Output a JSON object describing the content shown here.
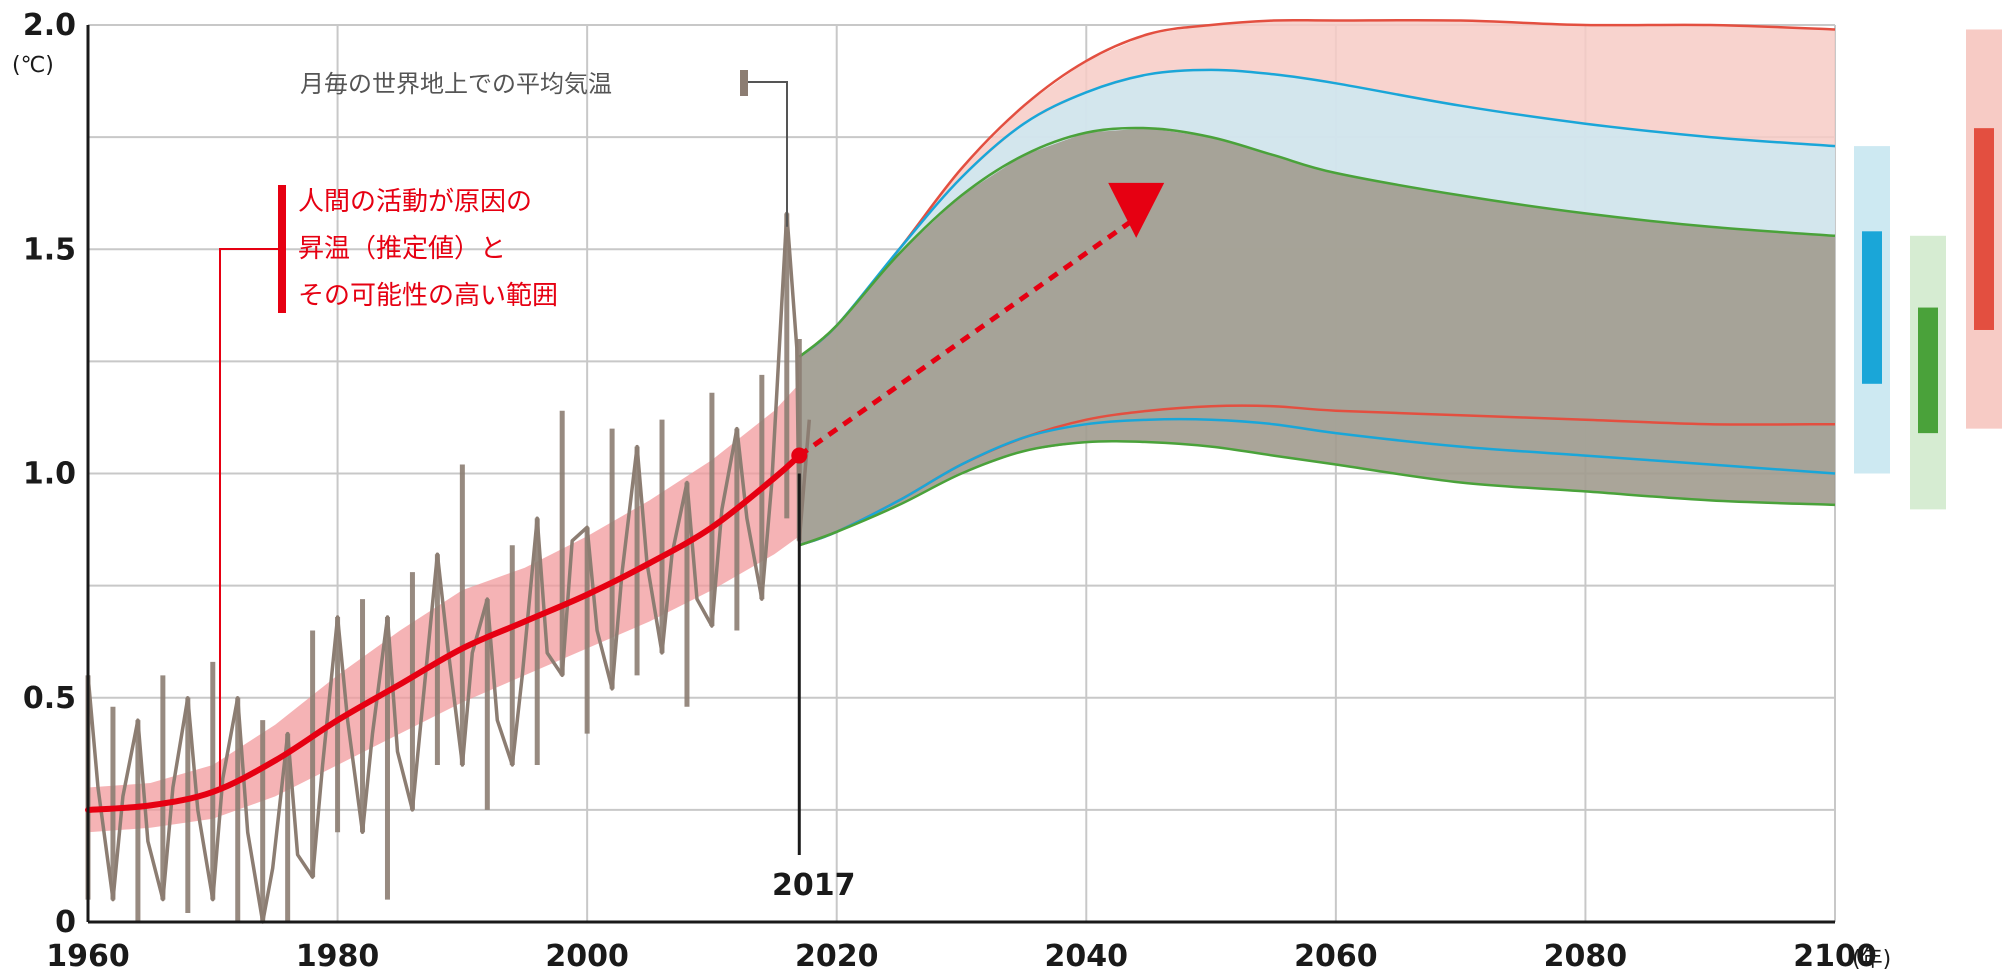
{
  "chart_data": {
    "type": "line",
    "title": "",
    "y_unit": "(℃)",
    "x_unit": "(年)",
    "xlim": [
      1960,
      2100
    ],
    "ylim": [
      0,
      2.0
    ],
    "x_ticks": [
      "1960",
      "1980",
      "2000",
      "2020",
      "2040",
      "2060",
      "2080",
      "2100"
    ],
    "y_ticks": [
      "0",
      "0.5",
      "1.0",
      "1.5",
      "2.0"
    ],
    "grid": true,
    "annotations": {
      "observed_label": "月毎の世界地上での平均気温",
      "human_label_lines": [
        "人間の活動が原因の",
        "昇温（推定値）と",
        "その可能性の高い範囲"
      ],
      "year_marker": "2017"
    },
    "human_warming": {
      "name": "人間の活動が原因の昇温（推定値）",
      "color": "#e60012",
      "x": [
        1960,
        1965,
        1970,
        1975,
        1980,
        1985,
        1990,
        1995,
        2000,
        2005,
        2010,
        2015,
        2017
      ],
      "y": [
        0.25,
        0.26,
        0.29,
        0.36,
        0.45,
        0.53,
        0.61,
        0.67,
        0.73,
        0.8,
        0.88,
        0.99,
        1.04
      ],
      "band_low": [
        0.2,
        0.21,
        0.23,
        0.28,
        0.35,
        0.42,
        0.49,
        0.55,
        0.61,
        0.67,
        0.74,
        0.82,
        0.86
      ],
      "band_high": [
        0.3,
        0.31,
        0.35,
        0.44,
        0.55,
        0.65,
        0.74,
        0.79,
        0.86,
        0.94,
        1.03,
        1.14,
        1.2
      ]
    },
    "observed_monthly": {
      "name": "月毎の世界地上での平均気温",
      "color": "#8c7d72",
      "x": [
        1960,
        1962,
        1964,
        1966,
        1968,
        1970,
        1972,
        1974,
        1976,
        1978,
        1980,
        1982,
        1984,
        1986,
        1988,
        1990,
        1992,
        1994,
        1996,
        1998,
        2000,
        2002,
        2004,
        2006,
        2008,
        2010,
        2012,
        2014,
        2016,
        2017
      ],
      "y": [
        0.3,
        0.28,
        0.18,
        0.3,
        0.25,
        0.32,
        0.2,
        0.12,
        0.15,
        0.35,
        0.45,
        0.42,
        0.38,
        0.48,
        0.62,
        0.6,
        0.45,
        0.55,
        0.6,
        0.85,
        0.65,
        0.78,
        0.8,
        0.82,
        0.72,
        0.92,
        0.9,
        0.98,
        1.28,
        1.12
      ],
      "max": [
        0.55,
        0.48,
        0.45,
        0.55,
        0.5,
        0.58,
        0.5,
        0.45,
        0.42,
        0.65,
        0.68,
        0.72,
        0.68,
        0.78,
        0.82,
        1.02,
        0.72,
        0.84,
        0.9,
        1.14,
        0.88,
        1.1,
        1.06,
        1.12,
        0.98,
        1.18,
        1.1,
        1.22,
        1.58,
        1.3
      ],
      "min": [
        0.05,
        0.05,
        0.0,
        0.05,
        0.02,
        0.05,
        0.0,
        0.0,
        0.0,
        0.1,
        0.2,
        0.2,
        0.05,
        0.25,
        0.35,
        0.35,
        0.25,
        0.35,
        0.35,
        0.55,
        0.42,
        0.52,
        0.55,
        0.6,
        0.48,
        0.66,
        0.65,
        0.72,
        0.9,
        0.85
      ]
    },
    "projection": {
      "start_year": 2017,
      "arrow_end": [
        2044,
        1.57
      ],
      "x": [
        2017,
        2020,
        2025,
        2030,
        2035,
        2040,
        2045,
        2050,
        2055,
        2060,
        2070,
        2080,
        2090,
        2100
      ],
      "scenarios": [
        {
          "name": "",
          "color": "#e34f40",
          "fill": "#f7cbc5",
          "upper": [
            1.26,
            1.33,
            1.5,
            1.68,
            1.82,
            1.92,
            1.98,
            2.0,
            2.01,
            2.01,
            2.01,
            2.0,
            2.0,
            1.99
          ],
          "lower": [
            0.84,
            0.87,
            0.94,
            1.02,
            1.08,
            1.12,
            1.14,
            1.15,
            1.15,
            1.14,
            1.13,
            1.12,
            1.11,
            1.11
          ]
        },
        {
          "name": "",
          "color": "#1aa6d8",
          "fill": "#cde9f2",
          "upper": [
            1.26,
            1.33,
            1.5,
            1.66,
            1.78,
            1.85,
            1.89,
            1.9,
            1.89,
            1.87,
            1.82,
            1.78,
            1.75,
            1.73
          ],
          "lower": [
            0.84,
            0.87,
            0.94,
            1.02,
            1.08,
            1.11,
            1.12,
            1.12,
            1.11,
            1.09,
            1.06,
            1.04,
            1.02,
            1.0
          ]
        },
        {
          "name": "",
          "color": "#4aa23a",
          "fill": "#a19b8e",
          "upper": [
            1.26,
            1.33,
            1.49,
            1.62,
            1.71,
            1.76,
            1.77,
            1.75,
            1.71,
            1.67,
            1.62,
            1.58,
            1.55,
            1.53
          ],
          "lower": [
            0.84,
            0.87,
            0.93,
            1.0,
            1.05,
            1.07,
            1.07,
            1.06,
            1.04,
            1.02,
            0.98,
            0.96,
            0.94,
            0.93
          ]
        }
      ]
    },
    "range_bars_2100": [
      {
        "color": "#1aa6d8",
        "fill": "#cde9f2",
        "outer": [
          1.0,
          1.73
        ],
        "likely": [
          1.2,
          1.54
        ]
      },
      {
        "color": "#4aa23a",
        "fill": "#d6ecd2",
        "outer": [
          0.92,
          1.53
        ],
        "likely": [
          1.09,
          1.37
        ]
      },
      {
        "color": "#e34f40",
        "fill": "#f7cbc5",
        "outer": [
          1.1,
          1.99
        ],
        "likely": [
          1.32,
          1.77
        ]
      }
    ]
  }
}
